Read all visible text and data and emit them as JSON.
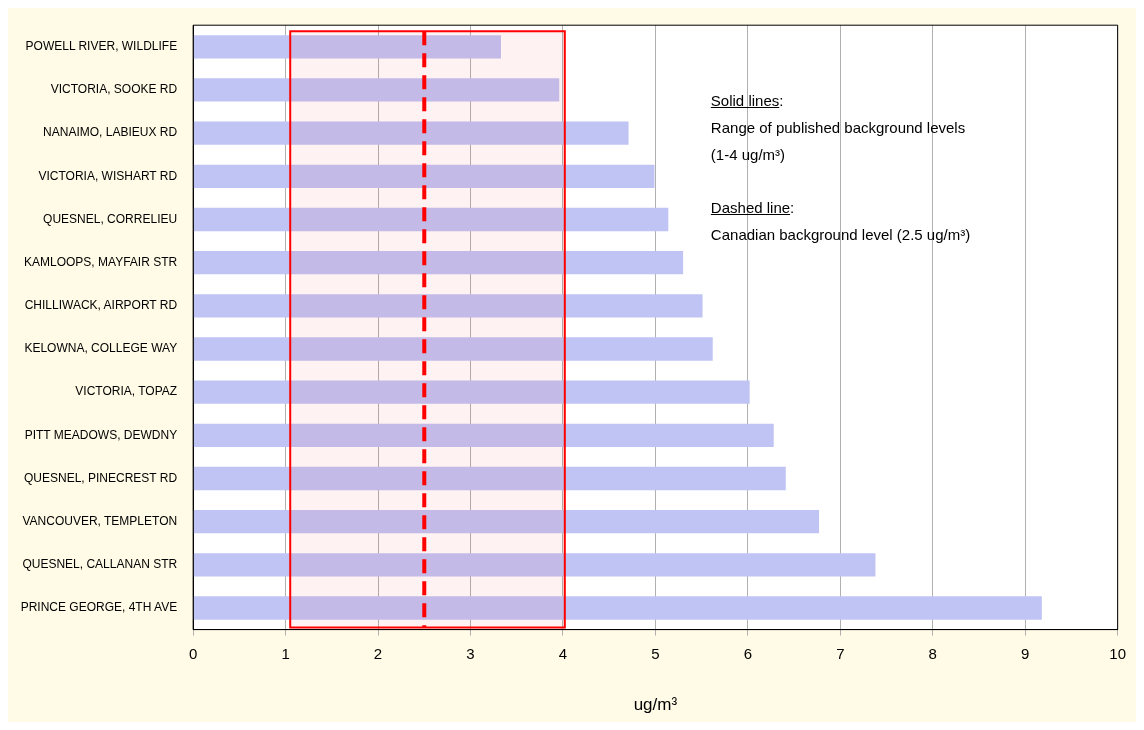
{
  "chart_data": {
    "type": "bar",
    "orientation": "horizontal",
    "xlabel": "ug/m³",
    "categories": [
      "POWELL RIVER, WILDLIFE",
      "VICTORIA, SOOKE RD",
      "NANAIMO, LABIEUX RD",
      "VICTORIA, WISHART RD",
      "QUESNEL, CORRELIEU",
      "KAMLOOPS, MAYFAIR STR",
      "CHILLIWACK, AIRPORT RD",
      "KELOWNA, COLLEGE WAY",
      "VICTORIA, TOPAZ",
      "PITT MEADOWS, DEWDNY",
      "QUESNEL, PINECREST RD",
      "VANCOUVER, TEMPLETON",
      "QUESNEL, CALLANAN STR",
      "PRINCE GEORGE, 4TH AVE"
    ],
    "values": [
      3.33,
      3.96,
      4.71,
      4.99,
      5.14,
      5.3,
      5.51,
      5.62,
      6.02,
      6.28,
      6.41,
      6.77,
      7.38,
      9.18
    ],
    "color": "#c0c4f4",
    "xlim": [
      0,
      10
    ],
    "xticks": [
      0,
      1,
      2,
      3,
      4,
      5,
      6,
      7,
      8,
      9,
      10
    ],
    "grid": "x",
    "bands": [
      {
        "axis": "x",
        "from": 1.05,
        "to": 4.02,
        "color": "#ff0000"
      }
    ],
    "ref_lines": [
      {
        "axis": "x",
        "value": 2.5,
        "color": "#ff0000",
        "line_style": "dashed"
      }
    ],
    "annotations": [
      "Solid lines:",
      "Range of published background levels",
      "(1-4 ug/m³)",
      "Dashed line:",
      "Canadian background level (2.5 ug/m³)"
    ]
  }
}
